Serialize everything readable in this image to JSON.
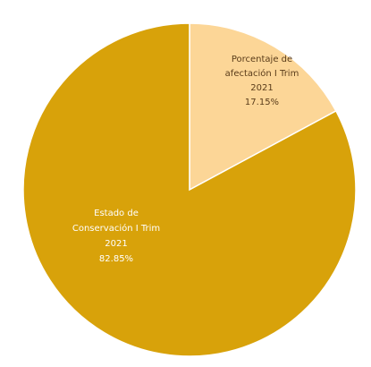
{
  "chart_data": {
    "type": "pie",
    "slices": [
      {
        "label_lines": [
          "Porcentaje de",
          "afectación I Trim",
          "2021",
          "17.15%"
        ],
        "value": 17.15,
        "color": "#fcd697",
        "text_color": "#5a3c1a"
      },
      {
        "label_lines": [
          "Estado de",
          "Conservación I Trim",
          "2021",
          "82.85%"
        ],
        "value": 82.85,
        "color": "#d8a20a",
        "text_color": "#ffffff"
      }
    ],
    "start_angle_deg": 0,
    "direction": "clockwise",
    "slice_border_color": "#ffffff"
  }
}
